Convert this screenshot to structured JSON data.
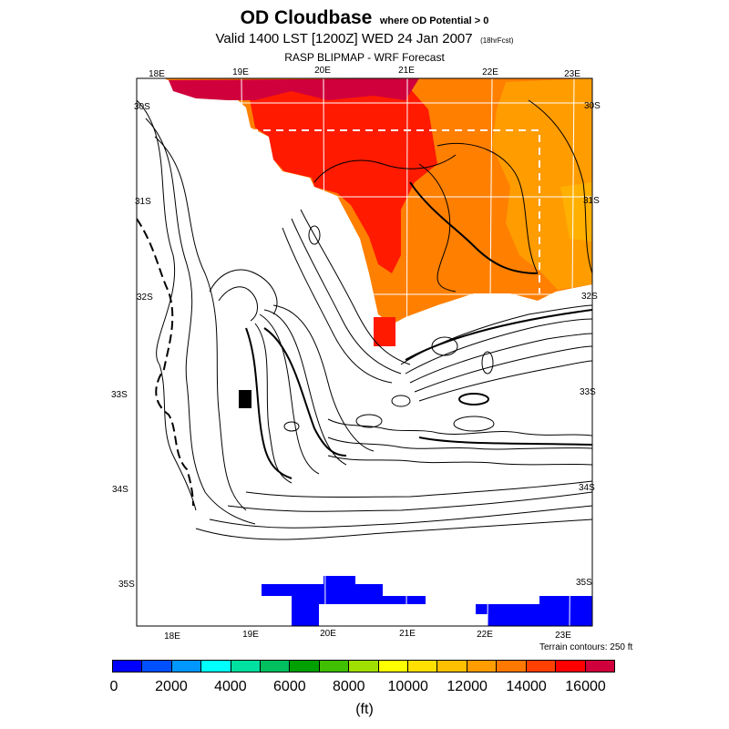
{
  "header": {
    "title": "OD Cloudbase",
    "title_note": "where OD Potential > 0",
    "valid_line": "Valid 1400 LST [1200Z] WED 24 Jan 2007",
    "forecast_hours": "(18hrFcst)",
    "source": "RASP BLIPMAP - WRF Forecast"
  },
  "map": {
    "top_longitudes": [
      "18E",
      "19E",
      "20E",
      "21E",
      "22E",
      "23E"
    ],
    "bottom_longitudes": [
      "18E",
      "19E",
      "20E",
      "21E",
      "22E",
      "23E"
    ],
    "left_latitudes": [
      "30S",
      "31S",
      "32S",
      "33S",
      "34S",
      "35S"
    ],
    "right_latitudes": [
      "30S",
      "31S",
      "32S",
      "33S",
      "34S",
      "35S"
    ],
    "terrain_note": "Terrain contours: 250 ft"
  },
  "legend": {
    "colors": [
      "#0000ff",
      "#0050ff",
      "#0096ff",
      "#00ffff",
      "#00e0a0",
      "#00c060",
      "#00a000",
      "#40c000",
      "#a0e000",
      "#ffff00",
      "#ffe000",
      "#ffc000",
      "#ff9c00",
      "#ff7800",
      "#ff4000",
      "#ff0000",
      "#d0003c"
    ],
    "labels": [
      "0",
      "2000",
      "4000",
      "6000",
      "8000",
      "10000",
      "12000",
      "14000",
      "16000"
    ],
    "unit": "(ft)"
  }
}
